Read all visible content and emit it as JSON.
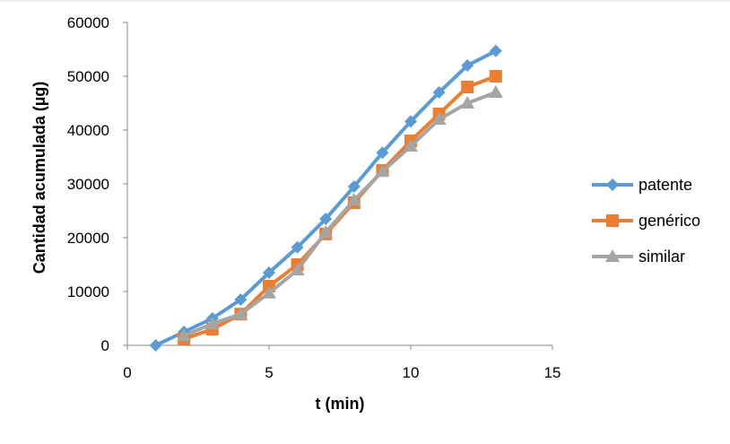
{
  "chart_data": {
    "type": "line",
    "title": "",
    "xlabel": "t (min)",
    "ylabel": "Cantidad acumulada (µg)",
    "xlim": [
      0,
      15
    ],
    "ylim": [
      0,
      60000
    ],
    "xticks": [
      0,
      5,
      10,
      15
    ],
    "yticks": [
      0,
      10000,
      20000,
      30000,
      40000,
      50000,
      60000
    ],
    "grid": false,
    "legend_position": "right",
    "series": [
      {
        "name": "patente",
        "color": "#5B9BD5",
        "marker": "diamond",
        "points": [
          [
            1,
            0
          ],
          [
            2,
            2500
          ],
          [
            3,
            5000
          ],
          [
            4,
            8500
          ],
          [
            5,
            13500
          ],
          [
            6,
            18200
          ],
          [
            7,
            23500
          ],
          [
            8,
            29500
          ],
          [
            9,
            35800
          ],
          [
            10,
            41600
          ],
          [
            11,
            47000
          ],
          [
            12,
            52000
          ],
          [
            13,
            54700
          ]
        ]
      },
      {
        "name": "genérico",
        "color": "#ED7D31",
        "marker": "square",
        "points": [
          [
            2,
            1200
          ],
          [
            3,
            3000
          ],
          [
            4,
            5800
          ],
          [
            5,
            11000
          ],
          [
            6,
            15000
          ],
          [
            7,
            20700
          ],
          [
            8,
            26500
          ],
          [
            9,
            32500
          ],
          [
            10,
            38000
          ],
          [
            11,
            43000
          ],
          [
            12,
            48000
          ],
          [
            13,
            50000
          ]
        ]
      },
      {
        "name": "similar",
        "color": "#A5A5A5",
        "marker": "triangle",
        "points": [
          [
            2,
            1800
          ],
          [
            3,
            4000
          ],
          [
            4,
            5800
          ],
          [
            5,
            9700
          ],
          [
            6,
            14000
          ],
          [
            7,
            21000
          ],
          [
            8,
            27000
          ],
          [
            9,
            32300
          ],
          [
            10,
            37000
          ],
          [
            11,
            42000
          ],
          [
            12,
            45000
          ],
          [
            13,
            47000
          ]
        ]
      }
    ]
  }
}
